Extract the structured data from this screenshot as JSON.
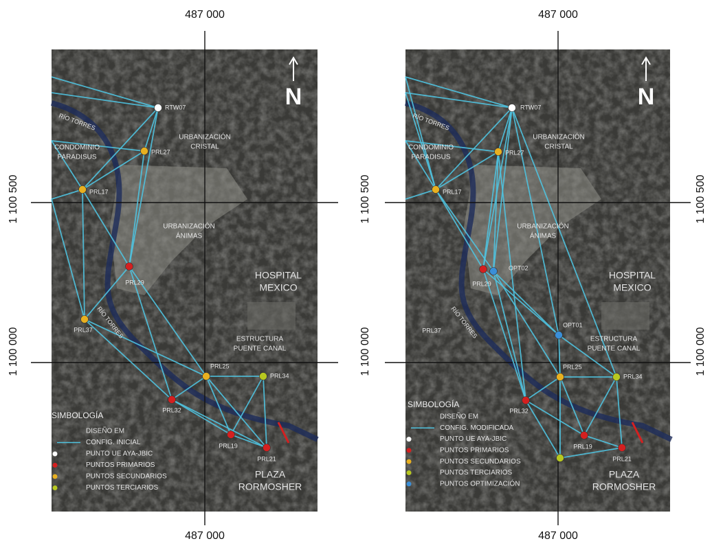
{
  "panels": [
    {
      "coords": {
        "top": "487 000",
        "bottom": "487 000",
        "left": [
          "1 100 500",
          "1 100 000"
        ]
      },
      "north": "N",
      "places": [
        {
          "lines": [
            "RÍO TORRES"
          ]
        },
        {
          "lines": [
            "URBANIZACIÓN",
            "CRISTAL"
          ]
        },
        {
          "lines": [
            "CONDOMINIO",
            "PARADISUS"
          ]
        },
        {
          "lines": [
            "URBANIZACIÓN",
            "ÁNIMAS"
          ]
        },
        {
          "lines": [
            "HOSPITAL",
            "MEXICO"
          ]
        },
        {
          "lines": [
            "RÍO TORRES"
          ]
        },
        {
          "lines": [
            "ESTRUCTURA",
            "PUENTE CANAL"
          ]
        },
        {
          "lines": [
            "PLAZA",
            "RORMOSHER"
          ]
        }
      ],
      "points": [
        {
          "label": "RTW07",
          "color": "#ffffff"
        },
        {
          "label": "PRL27",
          "color": "#e8b020"
        },
        {
          "label": "PRL17",
          "color": "#e8b020"
        },
        {
          "label": "PRL29",
          "color": "#d42020"
        },
        {
          "label": "PRL37",
          "color": "#e8b020"
        },
        {
          "label": "PRL25",
          "color": "#e8b020"
        },
        {
          "label": "PRL34",
          "color": "#b8c820"
        },
        {
          "label": "PRL32",
          "color": "#d42020"
        },
        {
          "label": "PRL19",
          "color": "#d42020"
        },
        {
          "label": "PRL21",
          "color": "#d42020"
        }
      ],
      "legend": {
        "title": "SIMBOLOGÍA",
        "lines": [
          "DISEÑO EM",
          "CONFIG. INICIAL"
        ],
        "items": [
          {
            "label": "PUNTO UE AYA-JBIC",
            "color": "#ffffff"
          },
          {
            "label": "PUNTOS PRIMARIOS",
            "color": "#d42020"
          },
          {
            "label": "PUNTOS SECUNDARIOS",
            "color": "#e8b020"
          },
          {
            "label": "PUNTOS TERCIARIOS",
            "color": "#b8c820"
          }
        ]
      }
    },
    {
      "coords": {
        "top": "487 000",
        "bottom": "487 000",
        "left": [
          "1 100 500",
          "1 100 000"
        ],
        "right": [
          "1 100 500",
          "1 100 000"
        ]
      },
      "north": "N",
      "places": [
        {
          "lines": [
            "RÍO TORRES"
          ]
        },
        {
          "lines": [
            "URBANIZACIÓN",
            "CRISTAL"
          ]
        },
        {
          "lines": [
            "CONDOMINIO",
            "PARADISUS"
          ]
        },
        {
          "lines": [
            "URBANIZACIÓN",
            "ÁNIMAS"
          ]
        },
        {
          "lines": [
            "HOSPITAL",
            "MEXICO"
          ]
        },
        {
          "lines": [
            "RÍO TORRES"
          ]
        },
        {
          "lines": [
            "ESTRUCTURA",
            "PUENTE CANAL"
          ]
        },
        {
          "lines": [
            "PLAZA",
            "RORMOSHER"
          ]
        },
        {
          "lines": [
            "PRL37"
          ]
        }
      ],
      "points": [
        {
          "label": "RTW07",
          "color": "#ffffff"
        },
        {
          "label": "PRL27",
          "color": "#e8b020"
        },
        {
          "label": "PRL17",
          "color": "#e8b020"
        },
        {
          "label": "PRL29",
          "color": "#d42020"
        },
        {
          "label": "OPT02",
          "color": "#3a8fd8"
        },
        {
          "label": "OPT01",
          "color": "#3a8fd8"
        },
        {
          "label": "PRL25",
          "color": "#e8b020"
        },
        {
          "label": "PRL34",
          "color": "#b8c820"
        },
        {
          "label": "PRL32",
          "color": "#d42020"
        },
        {
          "label": "PRL19",
          "color": "#d42020"
        },
        {
          "label": "PRL21",
          "color": "#d42020"
        },
        {
          "label": null,
          "color": "#b8c820"
        }
      ],
      "legend": {
        "title": "SIMBOLOGÍA",
        "lines": [
          "DISEÑO EM",
          "CONFIG. MODIFICADA"
        ],
        "items": [
          {
            "label": "PUNTO UE AYA-JBIC",
            "color": "#ffffff"
          },
          {
            "label": "PUNTOS PRIMARIOS",
            "color": "#d42020"
          },
          {
            "label": "PUNTOS SECUNDARIOS",
            "color": "#e8b020"
          },
          {
            "label": "PUNTOS TERCIARIOS",
            "color": "#b8c820"
          },
          {
            "label": "PUNTOS OPTIMIZACIÓN",
            "color": "#3a8fd8"
          }
        ]
      }
    }
  ]
}
